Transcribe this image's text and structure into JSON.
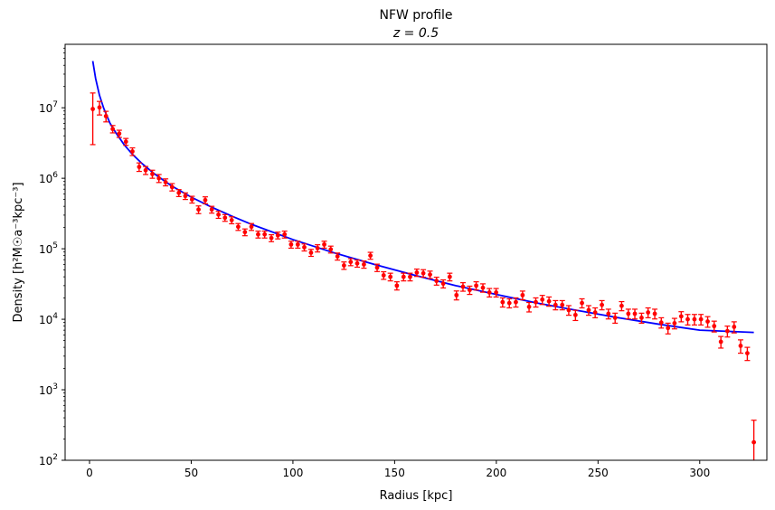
{
  "chart_data": {
    "type": "scatter",
    "title_line1": "NFW profile",
    "title_line2": "z = 0.5",
    "xlabel": "Radius [kpc]",
    "ylabel": "Density [h²M☉a⁻³kpc⁻³]",
    "xlim": [
      -12,
      333
    ],
    "ylim_log10": [
      2.0,
      7.9
    ],
    "yscale": "log",
    "grid": false,
    "x_ticks": [
      0,
      50,
      100,
      150,
      200,
      250,
      300
    ],
    "y_ticks": [
      {
        "exp": 2,
        "label_base": "10",
        "label_exp": "2"
      },
      {
        "exp": 3,
        "label_base": "10",
        "label_exp": "3"
      },
      {
        "exp": 4,
        "label_base": "10",
        "label_exp": "4"
      },
      {
        "exp": 5,
        "label_base": "10",
        "label_exp": "5"
      },
      {
        "exp": 6,
        "label_base": "10",
        "label_exp": "6"
      },
      {
        "exp": 7,
        "label_base": "10",
        "label_exp": "7"
      }
    ],
    "series": [
      {
        "kind": "points",
        "color": "#ff0000",
        "x": [
          1.6,
          4.9,
          8.1,
          11.4,
          14.6,
          17.9,
          21.1,
          24.4,
          27.6,
          30.9,
          34.1,
          37.4,
          40.6,
          43.9,
          47.1,
          50.4,
          53.6,
          56.9,
          60.1,
          63.4,
          66.6,
          69.9,
          73.1,
          76.4,
          79.6,
          82.9,
          86.1,
          89.4,
          92.6,
          95.9,
          99.1,
          102.4,
          105.6,
          108.9,
          112.1,
          115.4,
          118.6,
          121.9,
          125.1,
          128.4,
          131.6,
          134.9,
          138.1,
          141.4,
          144.6,
          147.9,
          151.1,
          154.4,
          157.6,
          160.9,
          164.1,
          167.4,
          170.6,
          173.9,
          177.1,
          180.4,
          183.6,
          186.9,
          190.1,
          193.4,
          196.6,
          199.9,
          203.1,
          206.4,
          209.6,
          212.9,
          216.1,
          219.4,
          222.6,
          225.9,
          229.1,
          232.4,
          235.6,
          238.9,
          242.1,
          245.4,
          248.6,
          251.9,
          255.1,
          258.4,
          261.6,
          264.9,
          268.1,
          271.4,
          274.6,
          277.9,
          281.1,
          284.4,
          287.6,
          290.9,
          294.1,
          297.4,
          300.6,
          303.9,
          307.1,
          310.4,
          313.6,
          316.9,
          320.1,
          323.4
        ],
        "y": [
          9600000.0,
          10100000.0,
          7600000.0,
          5000000.0,
          4300000.0,
          3300000.0,
          2400000.0,
          1450000.0,
          1300000.0,
          1150000.0,
          1000000.0,
          880000.0,
          750000.0,
          620000.0,
          560000.0,
          500000.0,
          360000.0,
          490000.0,
          360000.0,
          305000.0,
          275000.0,
          255000.0,
          205000.0,
          172000.0,
          205000.0,
          160000.0,
          160000.0,
          142000.0,
          155000.0,
          160000.0,
          115000.0,
          115000.0,
          105000.0,
          88000.0,
          102000.0,
          115000.0,
          98000.0,
          78000.0,
          58000.0,
          65000.0,
          62000.0,
          60000.0,
          80000.0,
          54000.0,
          42000.0,
          40000.0,
          30000.0,
          40000.0,
          40000.0,
          46000.0,
          45000.0,
          43000.0,
          35000.0,
          32000.0,
          40000.0,
          22000.0,
          29000.0,
          26000.0,
          30000.0,
          28000.0,
          24000.0,
          24000.0,
          17500.0,
          17000.0,
          17500.0,
          22000.0,
          15000.0,
          17500.0,
          19000.0,
          18000.0,
          16000.0,
          16000.0,
          13500.0,
          11500.0,
          17000.0,
          13500.0,
          12500.0,
          16000.0,
          12000.0,
          10500.0,
          15500.0,
          12000.0,
          12000.0,
          10500.0,
          12500.0,
          12000.0,
          9000.0,
          7500.0,
          8800.0,
          11000.0,
          10000.0,
          10000.0,
          10000.0,
          9300.0,
          8000.0,
          4800.0,
          6800.0,
          7800.0,
          4200.0,
          3300.0
        ],
        "err_lo": [
          6600000.0,
          2200000.0,
          1300000.0,
          600000.0,
          500000.0,
          370000.0,
          300000.0,
          200000.0,
          170000.0,
          150000.0,
          130000.0,
          100000.0,
          90000.0,
          70000.0,
          60000.0,
          55000.0,
          45000.0,
          55000.0,
          40000.0,
          35000.0,
          30000.0,
          29000.0,
          23000.0,
          19000.0,
          23000.0,
          18000.0,
          18000.0,
          16000.0,
          17000.0,
          18000.0,
          13000.0,
          13000.0,
          12000.0,
          10000.0,
          12000.0,
          13000.0,
          11000.0,
          9000.0,
          7000.0,
          7500.0,
          7200.0,
          7000.0,
          9000.0,
          6500.0,
          5200.0,
          5000.0,
          4000.0,
          5000.0,
          5000.0,
          5500.0,
          5500.0,
          5200.0,
          4500.0,
          4200.0,
          5000.0,
          3200.0,
          4000.0,
          3500.0,
          4000.0,
          3800.0,
          3300.0,
          3300.0,
          2600.0,
          2500.0,
          2600.0,
          3100.0,
          2300.0,
          2600.0,
          2800.0,
          2700.0,
          2400.0,
          2400.0,
          2100.0,
          1900.0,
          2500.0,
          2100.0,
          2000.0,
          2400.0,
          1900.0,
          1700.0,
          2300.0,
          1900.0,
          1900.0,
          1700.0,
          2000.0,
          1900.0,
          1500.0,
          1300.0,
          1500.0,
          1800.0,
          1700.0,
          1700.0,
          1700.0,
          1600.0,
          1400.0,
          900.0,
          1200.0,
          1400.0,
          900.0,
          700.0
        ],
        "err_hi": [
          6600000.0,
          2200000.0,
          1300000.0,
          600000.0,
          500000.0,
          370000.0,
          300000.0,
          200000.0,
          170000.0,
          150000.0,
          130000.0,
          100000.0,
          90000.0,
          70000.0,
          60000.0,
          55000.0,
          45000.0,
          55000.0,
          40000.0,
          35000.0,
          30000.0,
          29000.0,
          23000.0,
          19000.0,
          23000.0,
          18000.0,
          18000.0,
          16000.0,
          17000.0,
          18000.0,
          13000.0,
          13000.0,
          12000.0,
          10000.0,
          12000.0,
          13000.0,
          11000.0,
          9000.0,
          7000.0,
          7500.0,
          7200.0,
          7000.0,
          9000.0,
          6500.0,
          5200.0,
          5000.0,
          4000.0,
          5000.0,
          5000.0,
          5500.0,
          5500.0,
          5200.0,
          4500.0,
          4200.0,
          5000.0,
          3200.0,
          4000.0,
          3500.0,
          4000.0,
          3800.0,
          3300.0,
          3300.0,
          2600.0,
          2500.0,
          2600.0,
          3100.0,
          2300.0,
          2600.0,
          2800.0,
          2700.0,
          2400.0,
          2400.0,
          2100.0,
          1900.0,
          2500.0,
          2100.0,
          2000.0,
          2400.0,
          1900.0,
          1700.0,
          2300.0,
          1900.0,
          1900.0,
          1700.0,
          2000.0,
          1900.0,
          1500.0,
          1300.0,
          1500.0,
          1800.0,
          1700.0,
          1700.0,
          1700.0,
          1600.0,
          1400.0,
          900.0,
          1200.0,
          1400.0,
          900.0,
          700.0
        ]
      },
      {
        "kind": "outlier",
        "color": "#ff0000",
        "x": [
          326.6
        ],
        "y": [
          180
        ],
        "err_lo": [
          180
        ],
        "err_hi": [
          190
        ]
      },
      {
        "kind": "fit",
        "color": "#0000ff",
        "x": [
          1.6,
          3,
          4.9,
          7,
          10,
          13,
          17,
          21,
          26,
          32,
          40,
          50,
          60,
          70,
          80,
          100,
          120,
          140,
          160,
          180,
          200,
          220,
          240,
          260,
          280,
          300,
          326.6
        ],
        "y": [
          46000000.0,
          26000000.0,
          15000000.0,
          9800000.0,
          6100000.0,
          4400000.0,
          3000000.0,
          2200000.0,
          1600000.0,
          1150000.0,
          790000.0,
          540000.0,
          390000.0,
          290000.0,
          220000.0,
          135000.0,
          88000.0,
          60000.0,
          42000.0,
          30000.0,
          22500.0,
          17000.0,
          13300.0,
          10500.0,
          8500.0,
          7000.0,
          6500.0
        ]
      }
    ]
  }
}
